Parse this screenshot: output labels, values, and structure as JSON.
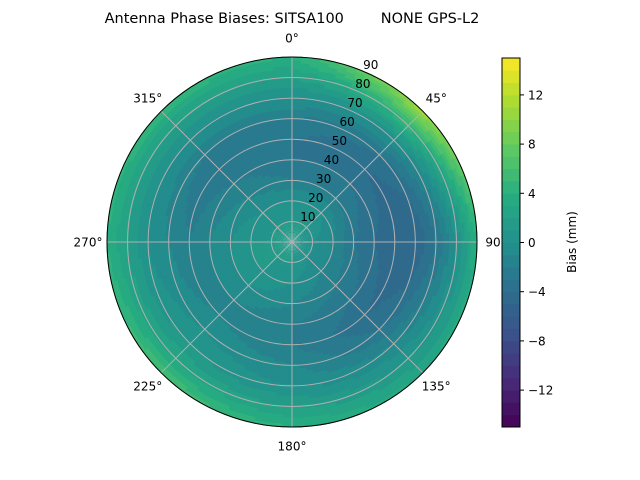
{
  "chart_data": {
    "type": "heatmap",
    "projection": "polar",
    "title": "Antenna Phase Biases: SITSA100        NONE GPS-L2",
    "theta_direction": "clockwise",
    "theta_zero": "top",
    "theta_tick_labels": [
      "0°",
      "45°",
      "90°",
      "135°",
      "180°",
      "225°",
      "270°",
      "315°"
    ],
    "theta_ticks": [
      0,
      45,
      90,
      135,
      180,
      225,
      270,
      315
    ],
    "r_ticks": [
      10,
      20,
      30,
      40,
      50,
      60,
      70,
      80,
      90
    ],
    "r_tick_labels": [
      "10",
      "20",
      "30",
      "40",
      "50",
      "60",
      "70",
      "80",
      "90"
    ],
    "rlim": [
      0,
      90
    ],
    "grid": true,
    "colorbar": {
      "label": "Bias (mm)",
      "range": [
        -15,
        15
      ],
      "level_step": 1,
      "ticks": [
        12,
        8,
        4,
        0,
        -4,
        -8,
        -12
      ],
      "tick_labels": [
        "12",
        "8",
        "4",
        "0",
        "−4",
        "−8",
        "−12"
      ],
      "colormap": "viridis"
    },
    "grid_azimuths": [
      0,
      45,
      90,
      135,
      180,
      225,
      270,
      315
    ],
    "grid_radii": [
      0,
      10,
      20,
      30,
      40,
      50,
      60,
      70,
      80,
      90
    ],
    "values": [
      [
        1,
        1,
        0,
        -2,
        -3,
        -3,
        -2,
        0,
        2,
        4
      ],
      [
        1,
        1,
        0,
        -2,
        -3,
        -4,
        -3,
        0,
        5,
        11
      ],
      [
        1,
        0,
        -1,
        -3,
        -4,
        -5,
        -5,
        -3,
        0,
        4
      ],
      [
        1,
        0,
        -1,
        -2,
        -3,
        -4,
        -3,
        -1,
        1,
        3
      ],
      [
        1,
        1,
        0,
        -1,
        -2,
        -2,
        -1,
        0,
        2,
        4
      ],
      [
        1,
        1,
        1,
        0,
        -1,
        -1,
        0,
        1,
        3,
        6
      ],
      [
        1,
        1,
        1,
        0,
        -1,
        -2,
        -1,
        0,
        2,
        4
      ],
      [
        1,
        1,
        0,
        -1,
        -2,
        -3,
        -2,
        0,
        2,
        5
      ]
    ]
  }
}
